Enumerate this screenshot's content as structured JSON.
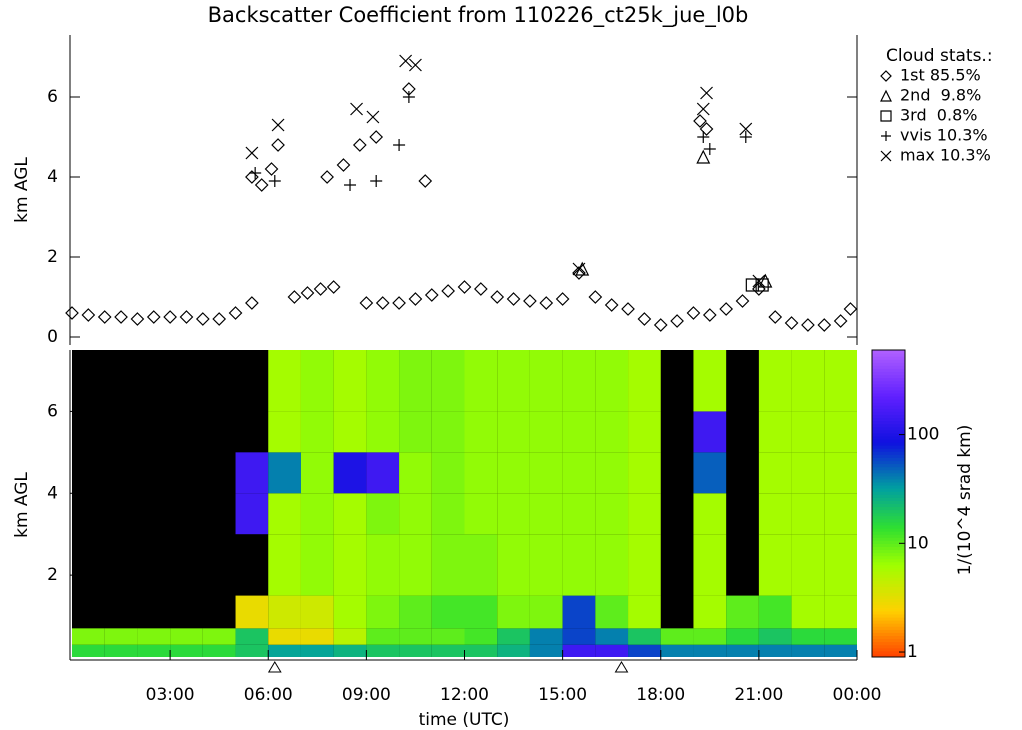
{
  "chart_data": [
    {
      "type": "scatter",
      "title": "Backscatter Coefficient from 110226_ct25k_jue_l0b",
      "y_label": "km AGL",
      "legend_title": "Cloud stats.:",
      "xlim": [
        0,
        24
      ],
      "ylim": [
        0,
        7.5
      ],
      "yticks": [
        0,
        2,
        4,
        6
      ],
      "series": [
        {
          "name": "1st 85.5%",
          "marker": "diamond",
          "color": "#000000",
          "x": [
            0,
            0.5,
            1,
            1.5,
            2,
            2.5,
            3,
            3.5,
            4,
            4.5,
            5,
            5.5,
            6.8,
            7.2,
            7.6,
            8,
            9,
            9.5,
            10,
            10.5,
            11,
            11.5,
            12,
            12.5,
            13,
            13.5,
            14,
            14.5,
            15,
            15.5,
            16,
            16.5,
            17,
            17.5,
            18,
            18.5,
            19,
            19.5,
            20,
            20.5,
            21,
            21.5,
            22,
            22.5,
            23,
            23.5,
            23.8,
            5.5,
            5.8,
            6.1,
            6.3,
            7.8,
            8.3,
            8.8,
            9.3,
            10.3,
            10.8,
            19.2,
            19.4
          ],
          "values": [
            0.6,
            0.55,
            0.5,
            0.5,
            0.45,
            0.5,
            0.5,
            0.5,
            0.45,
            0.45,
            0.6,
            0.85,
            1.0,
            1.1,
            1.2,
            1.25,
            0.85,
            0.85,
            0.85,
            0.95,
            1.05,
            1.15,
            1.25,
            1.2,
            1.0,
            0.95,
            0.9,
            0.85,
            0.95,
            1.6,
            1.0,
            0.8,
            0.7,
            0.45,
            0.3,
            0.4,
            0.6,
            0.55,
            0.7,
            0.9,
            1.2,
            0.5,
            0.35,
            0.3,
            0.3,
            0.4,
            0.7,
            4.0,
            3.8,
            4.2,
            4.8,
            4.0,
            4.3,
            4.8,
            5.0,
            6.2,
            3.9,
            5.4,
            5.2
          ]
        },
        {
          "name": "2nd  9.8%",
          "marker": "triangle",
          "color": "#000000",
          "x": [
            19.3,
            21.2,
            15.6
          ],
          "values": [
            4.5,
            1.4,
            1.7
          ]
        },
        {
          "name": "3rd  0.8%",
          "marker": "square",
          "color": "#000000",
          "x": [
            20.8,
            21.1
          ],
          "values": [
            1.3,
            1.3
          ]
        },
        {
          "name": "vvis 10.3%",
          "marker": "plus",
          "color": "#000000",
          "x": [
            5.6,
            6.2,
            8.5,
            9.3,
            10.3,
            19.3,
            19.5,
            20.6,
            10.0
          ],
          "values": [
            4.1,
            3.9,
            3.8,
            3.9,
            6.0,
            5.0,
            4.7,
            5.0,
            4.8
          ]
        },
        {
          "name": "max 10.3%",
          "marker": "x",
          "color": "#000000",
          "x": [
            5.5,
            6.3,
            8.7,
            9.2,
            10.2,
            10.5,
            19.4,
            19.3,
            20.6,
            15.5,
            21.0
          ],
          "values": [
            4.6,
            5.3,
            5.7,
            5.5,
            6.9,
            6.8,
            6.1,
            5.7,
            5.2,
            1.7,
            1.4
          ]
        }
      ]
    },
    {
      "type": "heatmap",
      "y_label": "km AGL",
      "x_label": "time (UTC)",
      "colorbar_label": "1/(10^4 srad km)",
      "xlim": [
        0,
        24
      ],
      "ylim": [
        0,
        7.5
      ],
      "yticks": [
        2,
        4,
        6
      ],
      "xticks": [
        {
          "value": 3,
          "label": "03:00"
        },
        {
          "value": 6,
          "label": "06:00"
        },
        {
          "value": 9,
          "label": "09:00"
        },
        {
          "value": 12,
          "label": "12:00"
        },
        {
          "value": 15,
          "label": "15:00"
        },
        {
          "value": 18,
          "label": "18:00"
        },
        {
          "value": 21,
          "label": "21:00"
        },
        {
          "value": 24,
          "label": "00:00"
        }
      ],
      "clim": [
        0.9,
        600
      ],
      "cticks": [
        1,
        10,
        100
      ],
      "color_log": true,
      "axis_markers": [
        6.2,
        16.8
      ],
      "x_bins": [
        0,
        1,
        2,
        3,
        4,
        5,
        6,
        7,
        8,
        9,
        10,
        11,
        12,
        13,
        14,
        15,
        16,
        17,
        18,
        19,
        20,
        21,
        22,
        23,
        24
      ],
      "y_bins": [
        0,
        0.3,
        0.7,
        1.5,
        3,
        4,
        5,
        6,
        7.5
      ],
      "z": [
        [
          15,
          15,
          15,
          15,
          15,
          20,
          30,
          30,
          25,
          20,
          20,
          20,
          20,
          25,
          40,
          150,
          150,
          60,
          40,
          40,
          40,
          40,
          40,
          40
        ],
        [
          8,
          8,
          8,
          8,
          8,
          20,
          3,
          3,
          5,
          10,
          10,
          10,
          12,
          20,
          40,
          60,
          40,
          20,
          10,
          10,
          15,
          20,
          15,
          15
        ],
        [
          null,
          null,
          null,
          null,
          null,
          3,
          4,
          4,
          6,
          8,
          10,
          12,
          12,
          8,
          8,
          60,
          10,
          6,
          null,
          6,
          10,
          12,
          6,
          6
        ],
        [
          null,
          null,
          null,
          null,
          null,
          null,
          6,
          7,
          6,
          7,
          7,
          8,
          8,
          7,
          7,
          7,
          7,
          6,
          null,
          6,
          null,
          6,
          6,
          6
        ],
        [
          null,
          null,
          null,
          null,
          null,
          150,
          6,
          7,
          6,
          8,
          7,
          8,
          7,
          7,
          7,
          7,
          7,
          6,
          null,
          6,
          null,
          6,
          6,
          6
        ],
        [
          null,
          null,
          null,
          null,
          null,
          150,
          40,
          7,
          100,
          150,
          7,
          8,
          7,
          7,
          7,
          7,
          7,
          6,
          null,
          50,
          null,
          6,
          6,
          6
        ],
        [
          null,
          null,
          null,
          null,
          null,
          null,
          6,
          7,
          6,
          7,
          8,
          8,
          7,
          7,
          7,
          7,
          7,
          6,
          null,
          150,
          null,
          6,
          6,
          6
        ],
        [
          null,
          null,
          null,
          null,
          null,
          null,
          6,
          7,
          6,
          7,
          8,
          8,
          7,
          7,
          7,
          7,
          7,
          6,
          null,
          6,
          null,
          6,
          6,
          6
        ]
      ]
    }
  ]
}
